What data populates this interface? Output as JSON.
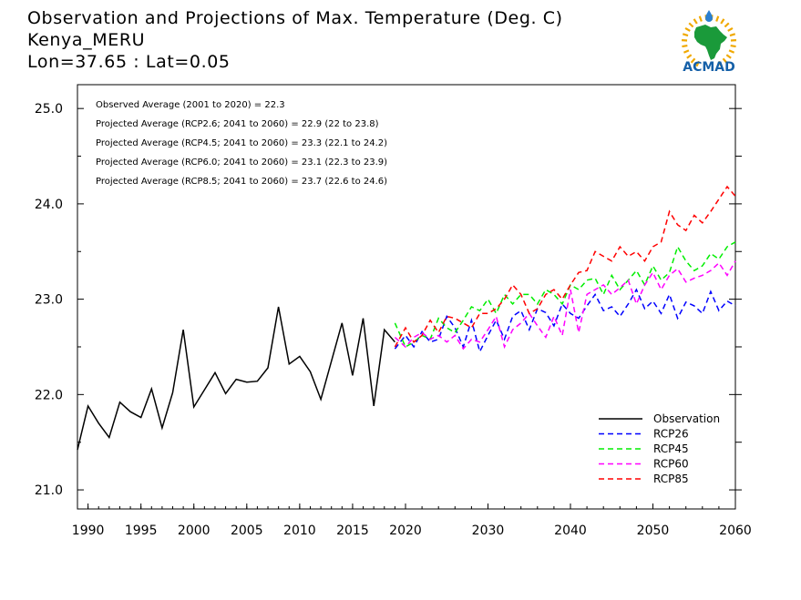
{
  "header": {
    "title": "Observation and Projections of Max. Temperature (Deg. C)",
    "location": "Kenya_MERU",
    "coords": "Lon=37.65 : Lat=0.05"
  },
  "logo": {
    "text": "ACMAD",
    "icon": "acmad-africa-logo-icon",
    "colors": {
      "map": "#1a9a3a",
      "sun": "#f0a800",
      "text": "#1560a8",
      "drop": "#2a7fd0"
    }
  },
  "chart_data": {
    "type": "line",
    "xlim": [
      1989,
      2060
    ],
    "ylim": [
      20.8,
      25.25
    ],
    "x_ticks": [
      1990,
      1995,
      2000,
      2005,
      2010,
      2015,
      2020,
      2030,
      2040,
      2050,
      2060
    ],
    "y_ticks": [
      21.0,
      22.0,
      23.0,
      24.0,
      25.0
    ],
    "y_tick_labels": [
      "21.0",
      "22.0",
      "23.0",
      "24.0",
      "25.0"
    ],
    "annotations": [
      "Observed Average (2001 to 2020) = 22.3",
      "Projected Average (RCP2.6; 2041 to 2060) = 22.9 (22 to 23.8)",
      "Projected Average (RCP4.5; 2041 to 2060) = 23.3 (22.1 to 24.2)",
      "Projected Average (RCP6.0; 2041 to 2060) = 23.1 (22.3 to 23.9)",
      "Projected Average (RCP8.5; 2041 to 2060) = 23.7 (22.6 to 24.6)"
    ],
    "legend_position": "bottom-right",
    "series": [
      {
        "name": "Observation",
        "color": "#000000",
        "dashed": false,
        "x": [
          1989,
          1990,
          1991,
          1992,
          1993,
          1994,
          1995,
          1996,
          1997,
          1998,
          1999,
          2000,
          2001,
          2002,
          2003,
          2004,
          2005,
          2006,
          2007,
          2008,
          2009,
          2010,
          2011,
          2012,
          2013,
          2014,
          2015,
          2016,
          2017,
          2018,
          2019
        ],
        "values": [
          21.42,
          21.88,
          21.7,
          21.55,
          21.92,
          21.82,
          21.76,
          22.06,
          21.65,
          22.02,
          22.68,
          21.87,
          22.05,
          22.23,
          22.01,
          22.16,
          22.13,
          22.14,
          22.28,
          22.92,
          22.32,
          22.4,
          22.24,
          21.95,
          22.35,
          22.75,
          22.2,
          22.8,
          21.88,
          22.68,
          22.55
        ]
      },
      {
        "name": "RCP26",
        "color": "#0000ff",
        "dashed": true,
        "x": [
          2019,
          2020,
          2021,
          2022,
          2023,
          2024,
          2025,
          2026,
          2027,
          2028,
          2029,
          2030,
          2031,
          2032,
          2033,
          2034,
          2035,
          2036,
          2037,
          2038,
          2039,
          2040,
          2041,
          2042,
          2043,
          2044,
          2045,
          2046,
          2047,
          2048,
          2049,
          2050,
          2051,
          2052,
          2053,
          2054,
          2055,
          2056,
          2057,
          2058,
          2059,
          2060
        ],
        "values": [
          22.48,
          22.62,
          22.5,
          22.66,
          22.55,
          22.58,
          22.82,
          22.7,
          22.5,
          22.78,
          22.45,
          22.62,
          22.78,
          22.58,
          22.82,
          22.88,
          22.68,
          22.9,
          22.86,
          22.72,
          22.95,
          22.85,
          22.8,
          22.93,
          23.05,
          22.88,
          22.92,
          22.82,
          22.95,
          23.1,
          22.9,
          22.98,
          22.85,
          23.05,
          22.8,
          22.97,
          22.93,
          22.85,
          23.08,
          22.88,
          22.98,
          22.93
        ]
      },
      {
        "name": "RCP45",
        "color": "#00ee00",
        "dashed": true,
        "x": [
          2019,
          2020,
          2021,
          2022,
          2023,
          2024,
          2025,
          2026,
          2027,
          2028,
          2029,
          2030,
          2031,
          2032,
          2033,
          2034,
          2035,
          2036,
          2037,
          2038,
          2039,
          2040,
          2041,
          2042,
          2043,
          2044,
          2045,
          2046,
          2047,
          2048,
          2049,
          2050,
          2051,
          2052,
          2053,
          2054,
          2055,
          2056,
          2057,
          2058,
          2059,
          2060
        ],
        "values": [
          22.75,
          22.5,
          22.55,
          22.62,
          22.58,
          22.8,
          22.7,
          22.65,
          22.78,
          22.92,
          22.88,
          23.0,
          22.85,
          23.05,
          22.95,
          23.05,
          23.05,
          22.95,
          23.1,
          23.05,
          22.95,
          23.15,
          23.1,
          23.2,
          23.22,
          23.05,
          23.25,
          23.1,
          23.2,
          23.3,
          23.15,
          23.35,
          23.2,
          23.28,
          23.55,
          23.4,
          23.3,
          23.35,
          23.48,
          23.42,
          23.55,
          23.6
        ]
      },
      {
        "name": "RCP60",
        "color": "#ff00ff",
        "dashed": true,
        "x": [
          2019,
          2020,
          2021,
          2022,
          2023,
          2024,
          2025,
          2026,
          2027,
          2028,
          2029,
          2030,
          2031,
          2032,
          2033,
          2034,
          2035,
          2036,
          2037,
          2038,
          2039,
          2040,
          2041,
          2042,
          2043,
          2044,
          2045,
          2046,
          2047,
          2048,
          2049,
          2050,
          2051,
          2052,
          2053,
          2054,
          2055,
          2056,
          2057,
          2058,
          2059,
          2060
        ],
        "values": [
          22.6,
          22.5,
          22.6,
          22.65,
          22.58,
          22.62,
          22.55,
          22.62,
          22.48,
          22.58,
          22.55,
          22.68,
          22.82,
          22.5,
          22.68,
          22.75,
          22.85,
          22.72,
          22.6,
          22.82,
          22.62,
          23.1,
          22.65,
          23.05,
          23.1,
          23.15,
          23.05,
          23.12,
          23.2,
          22.95,
          23.15,
          23.28,
          23.1,
          23.25,
          23.32,
          23.18,
          23.22,
          23.25,
          23.3,
          23.38,
          23.25,
          23.4
        ]
      },
      {
        "name": "RCP85",
        "color": "#ff0000",
        "dashed": true,
        "x": [
          2019,
          2020,
          2021,
          2022,
          2023,
          2024,
          2025,
          2026,
          2027,
          2028,
          2029,
          2030,
          2031,
          2032,
          2033,
          2034,
          2035,
          2036,
          2037,
          2038,
          2039,
          2040,
          2041,
          2042,
          2043,
          2044,
          2045,
          2046,
          2047,
          2048,
          2049,
          2050,
          2051,
          2052,
          2053,
          2054,
          2055,
          2056,
          2057,
          2058,
          2059,
          2060
        ],
        "values": [
          22.5,
          22.7,
          22.55,
          22.62,
          22.78,
          22.65,
          22.82,
          22.8,
          22.75,
          22.7,
          22.85,
          22.85,
          22.9,
          23.0,
          23.15,
          23.05,
          22.85,
          22.9,
          23.05,
          23.1,
          23.0,
          23.15,
          23.28,
          23.3,
          23.5,
          23.45,
          23.4,
          23.55,
          23.45,
          23.5,
          23.4,
          23.55,
          23.6,
          23.92,
          23.78,
          23.72,
          23.88,
          23.8,
          23.92,
          24.05,
          24.18,
          24.08
        ]
      }
    ]
  }
}
